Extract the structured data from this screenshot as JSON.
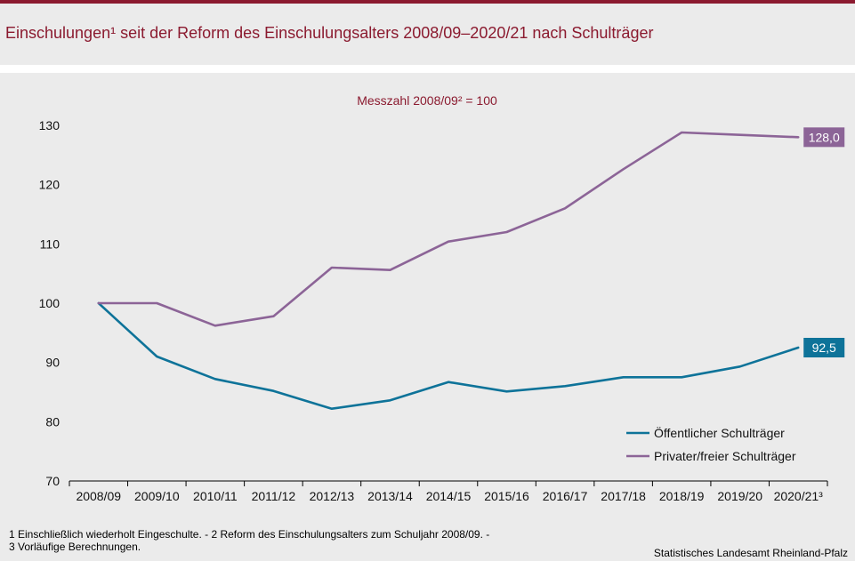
{
  "title": "Einschulungen¹ seit der Reform des Einschulungsalters 2008/09–2020/21 nach Schulträger",
  "footnotes": [
    "1 Einschließlich wiederholt  Eingeschulte. - 2 Reform  des Einschulungsalters  zum Schuljahr 2008/09.  -",
    "3 Vorläufige  Berechnungen."
  ],
  "source": "Statistisches Landesamt Rheinland-Pfalz",
  "colors": {
    "accent": "#8b1a2f",
    "public": "#0e7399",
    "private": "#8c6497"
  },
  "chart_data": {
    "type": "line",
    "subtitle": "Messzahl  2008/09² = 100",
    "categories": [
      "2008/09",
      "2009/10",
      "2010/11",
      "2011/12",
      "2012/13",
      "2013/14",
      "2014/15",
      "2015/16",
      "2016/17",
      "2017/18",
      "2018/19",
      "2019/20",
      "2020/21³"
    ],
    "ylim": [
      70,
      130
    ],
    "yticks": [
      "130",
      "120",
      "110",
      "100",
      "90",
      "80",
      "70"
    ],
    "ytick_values": [
      130,
      120,
      110,
      100,
      90,
      80,
      70
    ],
    "legend_position": "bottom-right",
    "series": [
      {
        "name": "Öffentlicher Schulträger",
        "color": "#0e7399",
        "values": [
          100,
          91.0,
          87.2,
          85.2,
          82.2,
          83.6,
          86.7,
          85.1,
          86.0,
          87.5,
          87.5,
          89.3,
          92.5
        ],
        "end_label": "92,5"
      },
      {
        "name": "Privater/freier Schulträger",
        "color": "#8c6497",
        "values": [
          100,
          100,
          96.2,
          97.8,
          106.0,
          105.6,
          110.4,
          112.0,
          116.0,
          122.6,
          128.8,
          128.4,
          128.0
        ],
        "end_label": "128,0"
      }
    ]
  }
}
